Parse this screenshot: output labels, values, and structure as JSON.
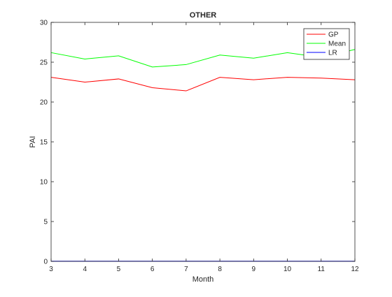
{
  "chart_data": {
    "type": "line",
    "title": "OTHER",
    "xlabel": "Month",
    "ylabel": "PAI",
    "xlim": [
      3,
      12
    ],
    "ylim": [
      0,
      30
    ],
    "xticks": [
      3,
      4,
      5,
      6,
      7,
      8,
      9,
      10,
      11,
      12
    ],
    "yticks": [
      0,
      5,
      10,
      15,
      20,
      25,
      30
    ],
    "grid": false,
    "legend_position": "top-right",
    "x": [
      3,
      4,
      5,
      6,
      7,
      8,
      9,
      10,
      11,
      12
    ],
    "series": [
      {
        "name": "GP",
        "color": "#ff0000",
        "values": [
          23.1,
          22.5,
          22.9,
          21.8,
          21.4,
          23.1,
          22.8,
          23.1,
          23.0,
          22.8
        ]
      },
      {
        "name": "Mean",
        "color": "#00ff00",
        "values": [
          26.2,
          25.4,
          25.8,
          24.4,
          24.7,
          25.9,
          25.5,
          26.2,
          25.6,
          26.6
        ]
      },
      {
        "name": "LR",
        "color": "#0000ff",
        "values": [
          0.02,
          0.02,
          0.02,
          0.02,
          0.02,
          0.02,
          0.02,
          0.02,
          0.02,
          0.02
        ]
      }
    ]
  }
}
